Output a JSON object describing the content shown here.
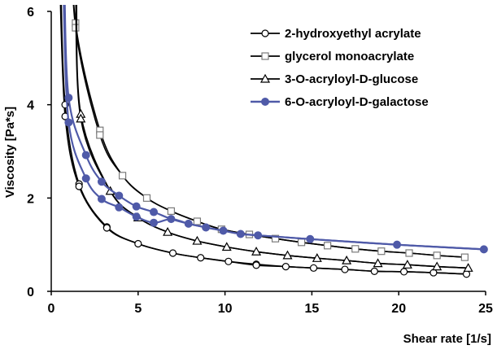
{
  "chart_data": {
    "type": "line",
    "title": "",
    "xlabel": "Shear rate [1/s]",
    "ylabel": "Viscosity [Pa*s]",
    "xlim": [
      0,
      25
    ],
    "ylim": [
      0,
      6
    ],
    "xticks": [
      "0",
      "5",
      "10",
      "15",
      "20",
      "25"
    ],
    "yticks": [
      "0",
      "2",
      "4",
      "6"
    ],
    "grid": false,
    "legend_position": "top-right",
    "series": [
      {
        "name": "2-hydroxyethyl acrylate",
        "color": "#000000",
        "marker": "circle-open",
        "points": [
          [
            0.8,
            4.0
          ],
          [
            0.8,
            3.75
          ],
          [
            1.6,
            2.3
          ],
          [
            1.6,
            2.25
          ],
          [
            3.2,
            1.38
          ],
          [
            3.2,
            1.36
          ],
          [
            5.0,
            1.02
          ],
          [
            7.0,
            0.82
          ],
          [
            8.6,
            0.72
          ],
          [
            10.2,
            0.64
          ],
          [
            11.8,
            0.58
          ],
          [
            11.8,
            0.56
          ],
          [
            13.5,
            0.53
          ],
          [
            15.1,
            0.5
          ],
          [
            16.9,
            0.47
          ],
          [
            18.6,
            0.43
          ],
          [
            20.3,
            0.42
          ],
          [
            22.0,
            0.4
          ],
          [
            23.9,
            0.37
          ]
        ]
      },
      {
        "name": "glycerol monoacrylate",
        "color": "#000000",
        "marker": "square-open",
        "points": [
          [
            1.4,
            5.75
          ],
          [
            1.4,
            5.65
          ],
          [
            2.8,
            3.45
          ],
          [
            2.8,
            3.35
          ],
          [
            4.1,
            2.48
          ],
          [
            5.5,
            2.0
          ],
          [
            6.9,
            1.72
          ],
          [
            8.4,
            1.5
          ],
          [
            9.8,
            1.33
          ],
          [
            11.4,
            1.22
          ],
          [
            12.9,
            1.13
          ],
          [
            14.4,
            1.05
          ],
          [
            15.9,
            0.98
          ],
          [
            17.5,
            0.91
          ],
          [
            19.0,
            0.86
          ],
          [
            20.6,
            0.82
          ],
          [
            22.2,
            0.77
          ],
          [
            23.8,
            0.73
          ]
        ]
      },
      {
        "name": "3-O-acryloyl-D-glucose",
        "color": "#000000",
        "marker": "triangle-open",
        "points": [
          [
            1.7,
            3.8
          ],
          [
            1.7,
            3.7
          ],
          [
            3.4,
            2.15
          ],
          [
            5.0,
            1.58
          ],
          [
            6.7,
            1.27
          ],
          [
            8.4,
            1.08
          ],
          [
            10.1,
            0.95
          ],
          [
            11.8,
            0.85
          ],
          [
            13.6,
            0.77
          ],
          [
            15.3,
            0.71
          ],
          [
            17.0,
            0.66
          ],
          [
            18.8,
            0.6
          ],
          [
            20.5,
            0.57
          ],
          [
            22.2,
            0.53
          ],
          [
            24.0,
            0.5
          ]
        ]
      },
      {
        "name": "6-O-acryloyl-D-galactose",
        "color": "#4f5aa8",
        "marker": "circle-filled",
        "points": [
          [
            1.0,
            4.15
          ],
          [
            1.0,
            3.62
          ],
          [
            2.0,
            2.92
          ],
          [
            2.0,
            2.42
          ],
          [
            2.9,
            2.35
          ],
          [
            2.9,
            1.98
          ],
          [
            3.9,
            2.05
          ],
          [
            3.9,
            1.8
          ],
          [
            4.9,
            1.82
          ],
          [
            4.9,
            1.6
          ],
          [
            5.9,
            1.7
          ],
          [
            5.9,
            1.47
          ],
          [
            6.9,
            1.55
          ],
          [
            7.9,
            1.45
          ],
          [
            8.9,
            1.37
          ],
          [
            9.9,
            1.3
          ],
          [
            10.9,
            1.23
          ],
          [
            11.9,
            1.2
          ],
          [
            14.9,
            1.12
          ],
          [
            19.9,
            1.0
          ],
          [
            24.9,
            0.9
          ]
        ]
      }
    ]
  }
}
